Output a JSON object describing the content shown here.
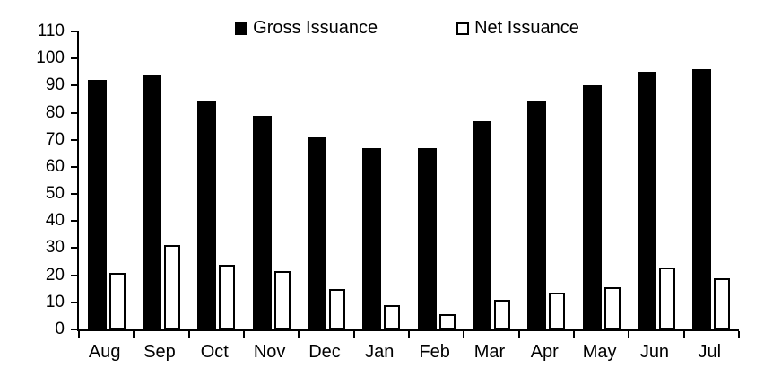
{
  "chart_data": {
    "type": "bar",
    "title": "",
    "xlabel": "",
    "ylabel": "",
    "categories": [
      "Aug",
      "Sep",
      "Oct",
      "Nov",
      "Dec",
      "Jan",
      "Feb",
      "Mar",
      "Apr",
      "May",
      "Jun",
      "Jul"
    ],
    "series": [
      {
        "name": "Gross Issuance",
        "swatch": "filled-black-square",
        "fill": "#000000",
        "values": [
          92,
          94,
          84,
          79,
          71,
          67,
          67,
          77,
          84,
          90,
          95,
          96
        ]
      },
      {
        "name": "Net Issuance",
        "swatch": "hollow-white-square",
        "fill": "#ffffff",
        "stroke": "#000000",
        "values": [
          21,
          31,
          24,
          21.5,
          15,
          9,
          5.5,
          11,
          13.5,
          15.5,
          23,
          19
        ]
      }
    ],
    "ylim": [
      0,
      110
    ],
    "ytick_step": 10,
    "ytick_labels": [
      "0",
      "10",
      "20",
      "30",
      "40",
      "50",
      "60",
      "70",
      "80",
      "90",
      "100",
      "110"
    ],
    "grid": false,
    "legend_position": "top-center",
    "axis_color": "#000000",
    "background_color": "#ffffff"
  }
}
